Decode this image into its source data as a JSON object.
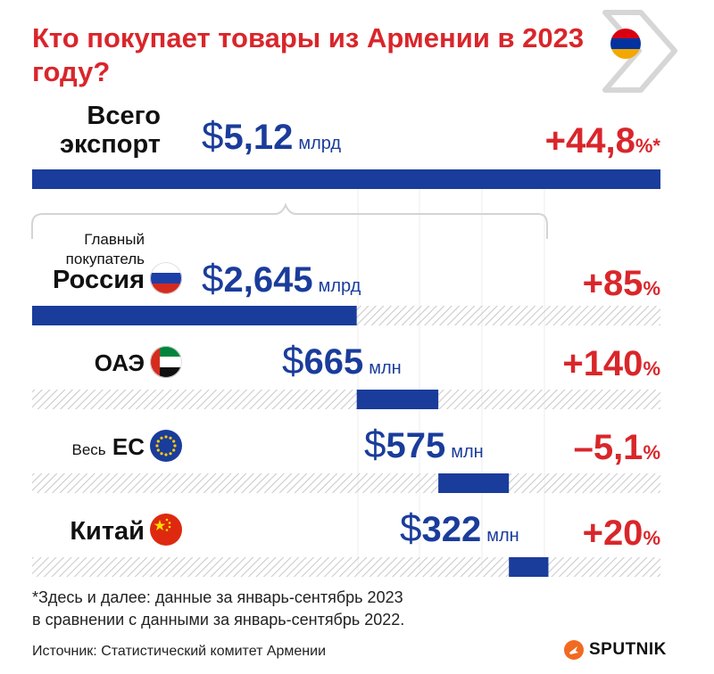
{
  "title": "Кто покупает товары из Армении в 2023 году?",
  "total": {
    "label_line1": "Всего",
    "label_line2": "экспорт",
    "dollar": "$",
    "value": "5,12",
    "unit": "млрд",
    "change_num": "+44,8",
    "change_pct": "%*"
  },
  "rows": [
    {
      "sublabel_line1": "Главный",
      "sublabel_line2": "покупатель",
      "label": "Россия",
      "dollar": "$",
      "value": "2,645",
      "unit": "млрд",
      "change_num": "+85",
      "change_pct": "%",
      "flag_icon": "russia-flag-icon"
    },
    {
      "label": "ОАЭ",
      "dollar": "$",
      "value": "665",
      "unit": "млн",
      "change_num": "+140",
      "change_pct": "%",
      "flag_icon": "uae-flag-icon"
    },
    {
      "label_prefix": "Весь",
      "label": "ЕС",
      "dollar": "$",
      "value": "575",
      "unit": "млн",
      "change_num": "–5,1",
      "change_pct": "%",
      "flag_icon": "eu-flag-icon"
    },
    {
      "label": "Китай",
      "dollar": "$",
      "value": "322",
      "unit": "млн",
      "change_num": "+20",
      "change_pct": "%",
      "flag_icon": "china-flag-icon"
    }
  ],
  "chart_data": {
    "type": "bar",
    "orientation": "horizontal-waterfall",
    "title": "Кто покупает товары из Армении в 2023 году?",
    "total": {
      "name": "Всего экспорт",
      "value": 5.12,
      "unit": "млрд $",
      "change_percent": 44.8
    },
    "categories": [
      "Россия",
      "ОАЭ",
      "Весь ЕС",
      "Китай"
    ],
    "values_million_usd": [
      2645,
      665,
      575,
      322
    ],
    "change_percent": [
      85,
      140,
      -5.1,
      20
    ],
    "total_million_usd": 5120
  },
  "colors": {
    "accent_red": "#d9262b",
    "bar_blue": "#1a3c9b",
    "hatch": "#c8c8c8"
  },
  "footnote_line1": "*Здесь и далее: данные за январь-сентябрь 2023",
  "footnote_line2": "в сравнении с данными за январь-сентябрь 2022.",
  "source": "Источник: Статистический комитет Армении",
  "brand": "SPUTNIK"
}
